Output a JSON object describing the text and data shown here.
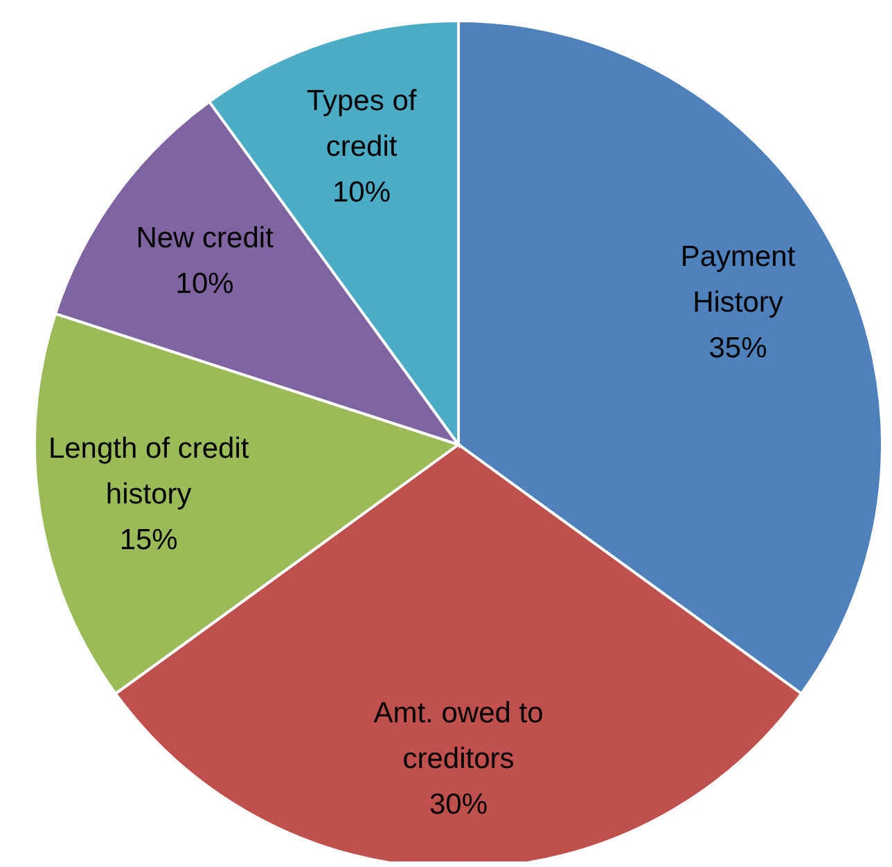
{
  "chart_data": {
    "type": "pie",
    "categories": [
      "Payment\nHistory",
      "Amt. owed to\ncreditors",
      "Length of credit\nhistory",
      "New credit",
      "Types of\ncredit"
    ],
    "values": [
      35,
      30,
      15,
      10,
      10
    ],
    "colors": [
      "#4f81bd",
      "#c0504d",
      "#9bbb59",
      "#8064a2",
      "#4bacc6"
    ],
    "value_labels": [
      "35%",
      "30%",
      "15%",
      "10%",
      "10%"
    ],
    "legend": false
  }
}
